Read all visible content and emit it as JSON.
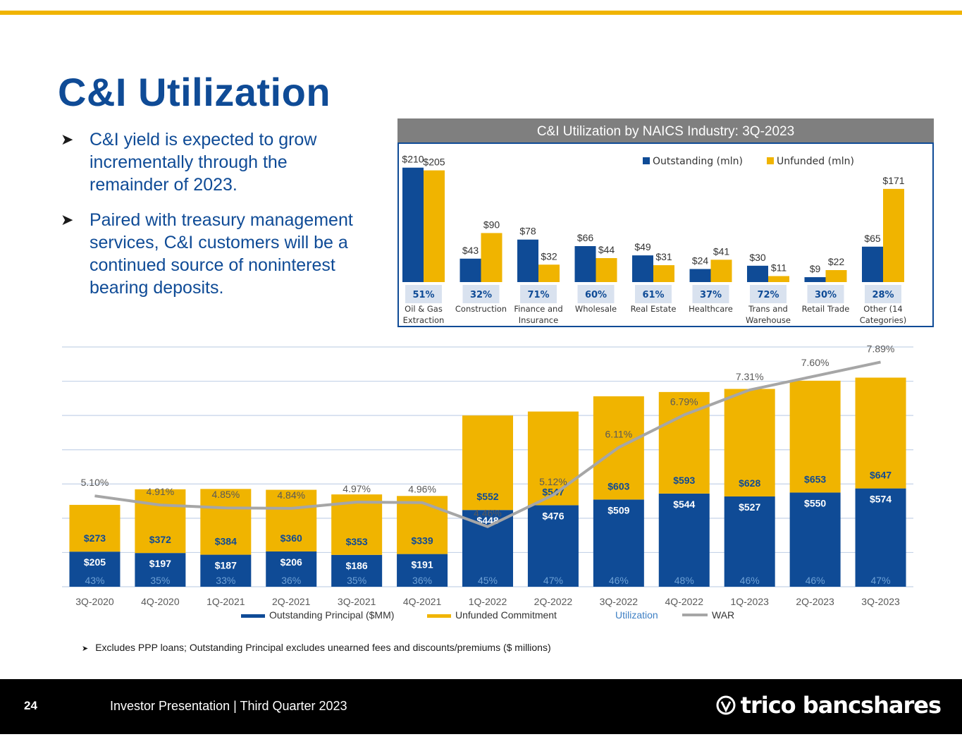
{
  "page": {
    "title": "C&I Utilization",
    "bullets": [
      "C&I yield is expected to grow incrementally through the remainder of 2023.",
      "Paired with treasury management services, C&I customers will be a continued source of noninterest bearing deposits."
    ],
    "footnote": "Excludes PPP loans; Outstanding Principal excludes unearned fees and discounts/premiums ($ millions)"
  },
  "footer": {
    "page_number": "24",
    "text": "Investor Presentation | Third Quarter 2023",
    "logo_text": "trico bancshares"
  },
  "colors": {
    "brand_blue": "#0f4b96",
    "brand_gold": "#f0b400",
    "utilization_blue": "#3d7fc4",
    "war_gray": "#a6a6a6"
  },
  "chart_data": [
    {
      "type": "bar",
      "title": "C&I Utilization by NAICS Industry: 3Q-2023",
      "categories": [
        "Oil & Gas Extraction",
        "Construction",
        "Finance and Insurance",
        "Wholesale",
        "Real Estate",
        "Healthcare",
        "Trans and Warehouse",
        "Retail Trade",
        "Other (14 Categories)"
      ],
      "series": [
        {
          "name": "Outstanding (mln)",
          "color": "#0f4b96",
          "values": [
            210,
            43,
            78,
            66,
            49,
            24,
            30,
            9,
            65
          ],
          "labels": [
            "$210",
            "$43",
            "$78",
            "$66",
            "$49",
            "$24",
            "$30",
            "$9",
            "$65"
          ]
        },
        {
          "name": "Unfunded (mln)",
          "color": "#f0b400",
          "values": [
            205,
            90,
            32,
            44,
            31,
            41,
            11,
            22,
            171
          ],
          "labels": [
            "$205",
            "$90",
            "$32",
            "$44",
            "$31",
            "$41",
            "$11",
            "$22",
            "$171"
          ]
        }
      ],
      "utilization": [
        "51%",
        "32%",
        "71%",
        "60%",
        "61%",
        "37%",
        "72%",
        "30%",
        "28%"
      ],
      "legend_position": "top-right",
      "ylim": [
        0,
        220
      ]
    },
    {
      "type": "bar",
      "stacked": true,
      "categories": [
        "3Q-2020",
        "4Q-2020",
        "1Q-2021",
        "2Q-2021",
        "3Q-2021",
        "4Q-2021",
        "1Q-2022",
        "2Q-2022",
        "3Q-2022",
        "4Q-2022",
        "1Q-2023",
        "2Q-2023",
        "3Q-2023"
      ],
      "series": [
        {
          "name": "Outstanding Principal ($MM)",
          "color": "#0f4b96",
          "values": [
            205,
            197,
            187,
            206,
            186,
            191,
            448,
            476,
            509,
            544,
            527,
            550,
            574
          ],
          "labels": [
            "$205",
            "$197",
            "$187",
            "$206",
            "$186",
            "$191",
            "$448",
            "$476",
            "$509",
            "$544",
            "$527",
            "$550",
            "$574"
          ]
        },
        {
          "name": "Unfunded Commitment",
          "color": "#f0b400",
          "values": [
            273,
            372,
            384,
            360,
            353,
            339,
            552,
            547,
            603,
            593,
            628,
            653,
            647
          ],
          "labels": [
            "$273",
            "$372",
            "$384",
            "$360",
            "$353",
            "$339",
            "$552",
            "$547",
            "$603",
            "$593",
            "$628",
            "$653",
            "$647"
          ]
        }
      ],
      "utilization": {
        "name": "Utilization",
        "labels": [
          "43%",
          "35%",
          "33%",
          "36%",
          "35%",
          "36%",
          "45%",
          "47%",
          "46%",
          "48%",
          "46%",
          "46%",
          "47%"
        ]
      },
      "war": {
        "name": "WAR",
        "values": [
          5.1,
          4.91,
          4.85,
          4.84,
          4.97,
          4.96,
          4.46,
          5.12,
          6.11,
          6.79,
          7.31,
          7.6,
          7.89
        ],
        "labels": [
          "5.10%",
          "4.91%",
          "4.85%",
          "4.84%",
          "4.97%",
          "4.96%",
          "4.46%",
          "5.12%",
          "6.11%",
          "6.79%",
          "7.31%",
          "7.60%",
          "7.89%"
        ]
      },
      "ylim": [
        0,
        1400
      ],
      "grid": true,
      "legend_position": "bottom"
    }
  ]
}
